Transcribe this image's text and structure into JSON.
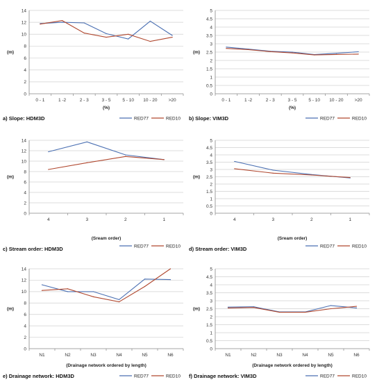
{
  "colors": {
    "RED77": "#4a6fb2",
    "RED10": "#b0472e",
    "grid": "#d0d0d0",
    "axis": "#888888"
  },
  "chart_data": [
    {
      "type": "line",
      "caption": "a) Slope: HDM3D",
      "ylabel": "(m)",
      "xlabel": "(%)",
      "categories": [
        "0 - 1",
        "1 -2",
        "2 - 3",
        "3 - 5",
        "5 - 10",
        "10 - 20",
        ">20"
      ],
      "ylim": [
        0,
        14
      ],
      "yticks": [
        0,
        2,
        4,
        6,
        8,
        10,
        12,
        14
      ],
      "grid": true,
      "legend": "bottom-right",
      "series": [
        {
          "name": "RED77",
          "values": [
            11.8,
            12.0,
            11.9,
            10.1,
            9.2,
            12.2,
            9.8
          ]
        },
        {
          "name": "RED10",
          "values": [
            11.7,
            12.3,
            10.2,
            9.5,
            10.0,
            8.8,
            9.5
          ]
        }
      ]
    },
    {
      "type": "line",
      "caption": "b) Slope: VIM3D",
      "ylabel": "(m)",
      "xlabel": "(%)",
      "categories": [
        "0 - 1",
        "1 -2",
        "2 - 3",
        "3 - 5",
        "5 - 10",
        "10 - 20",
        ">20"
      ],
      "ylim": [
        0,
        5
      ],
      "yticks": [
        0,
        0.5,
        1,
        1.5,
        2,
        2.5,
        3,
        3.5,
        4,
        4.5,
        5
      ],
      "grid": true,
      "legend": "bottom-right",
      "series": [
        {
          "name": "RED77",
          "values": [
            2.8,
            2.68,
            2.55,
            2.5,
            2.35,
            2.43,
            2.52
          ]
        },
        {
          "name": "RED10",
          "values": [
            2.72,
            2.65,
            2.53,
            2.45,
            2.33,
            2.36,
            2.38
          ]
        }
      ]
    },
    {
      "type": "line",
      "caption": "c) Stream order: HDM3D",
      "ylabel": "(m)",
      "xlabel": "(Sream order)",
      "categories": [
        "4",
        "3",
        "2",
        "1"
      ],
      "ylim": [
        0,
        14
      ],
      "yticks": [
        0,
        2,
        4,
        6,
        8,
        10,
        12,
        14
      ],
      "grid": true,
      "legend": "bottom-right",
      "series": [
        {
          "name": "RED77",
          "values": [
            11.8,
            13.7,
            11.2,
            10.3
          ]
        },
        {
          "name": "RED10",
          "values": [
            8.4,
            9.7,
            10.9,
            10.3
          ]
        }
      ]
    },
    {
      "type": "line",
      "caption": "d) Stream order: VIM3D",
      "ylabel": "(m)",
      "xlabel": "(Sream order)",
      "categories": [
        "4",
        "3",
        "2",
        "1"
      ],
      "ylim": [
        0,
        5
      ],
      "yticks": [
        0,
        0.5,
        1,
        1.5,
        2,
        2.5,
        3,
        3.5,
        4,
        4.5,
        5
      ],
      "grid": true,
      "legend": "bottom-right",
      "series": [
        {
          "name": "RED77",
          "values": [
            3.55,
            2.95,
            2.65,
            2.42
          ]
        },
        {
          "name": "RED10",
          "values": [
            3.05,
            2.75,
            2.62,
            2.45
          ]
        }
      ]
    },
    {
      "type": "line",
      "caption": "e) Drainage network: HDM3D",
      "ylabel": "(m)",
      "xlabel": "(Drainage network ordered by length)",
      "categories": [
        "N1",
        "N2",
        "N3",
        "N4",
        "N5",
        "N6"
      ],
      "ylim": [
        0,
        14
      ],
      "yticks": [
        0,
        2,
        4,
        6,
        8,
        10,
        12,
        14
      ],
      "grid": true,
      "legend": "bottom-right",
      "series": [
        {
          "name": "RED77",
          "values": [
            11.2,
            10.0,
            10.0,
            8.6,
            12.2,
            12.1
          ]
        },
        {
          "name": "RED10",
          "values": [
            10.2,
            10.5,
            9.1,
            8.2,
            10.9,
            14.0
          ]
        }
      ]
    },
    {
      "type": "line",
      "caption": "f) Drainage network: VIM3D",
      "ylabel": "(m)",
      "xlabel": "(Drainage network ordered by length)",
      "categories": [
        "N1",
        "N2",
        "N3",
        "N4",
        "N5",
        "N6"
      ],
      "ylim": [
        0,
        5
      ],
      "yticks": [
        0,
        0.5,
        1,
        1.5,
        2,
        2.5,
        3,
        3.5,
        4,
        4.5,
        5
      ],
      "grid": true,
      "legend": "bottom-right",
      "series": [
        {
          "name": "RED77",
          "values": [
            2.6,
            2.62,
            2.3,
            2.3,
            2.7,
            2.55
          ]
        },
        {
          "name": "RED10",
          "values": [
            2.55,
            2.58,
            2.28,
            2.28,
            2.5,
            2.65
          ]
        }
      ]
    }
  ]
}
